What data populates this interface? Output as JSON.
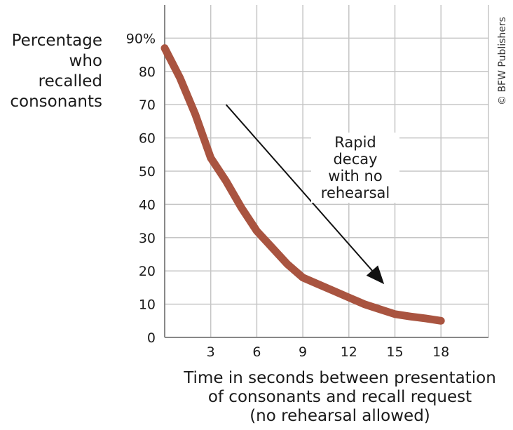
{
  "chart_data": {
    "type": "line",
    "title": "",
    "xlabel_lines": [
      "Time in seconds between presentation",
      "of consonants and recall request",
      "(no rehearsal allowed)"
    ],
    "ylabel_lines": [
      "Percentage",
      "who recalled",
      "consonants"
    ],
    "x_ticks": [
      3,
      6,
      9,
      12,
      15,
      18
    ],
    "x_tick_labels": [
      "3",
      "6",
      "9",
      "12",
      "15",
      "18"
    ],
    "y_ticks": [
      0,
      10,
      20,
      30,
      40,
      50,
      60,
      70,
      80,
      90
    ],
    "y_tick_labels": [
      "0",
      "10",
      "20",
      "30",
      "40",
      "50",
      "60",
      "70",
      "80",
      "90%"
    ],
    "xlim": [
      0,
      21
    ],
    "ylim": [
      0,
      100
    ],
    "grid": true,
    "series": [
      {
        "x": [
          0,
          1,
          2,
          3,
          4,
          5,
          6,
          7,
          8,
          9,
          10,
          11,
          12,
          13,
          14,
          15,
          16,
          17,
          18
        ],
        "y": [
          87,
          78,
          67,
          54,
          47,
          39,
          32,
          27,
          22,
          18,
          16,
          14,
          12,
          10,
          8.5,
          7,
          6.3,
          5.7,
          5
        ]
      }
    ],
    "annotation": {
      "lines": [
        "Rapid decay",
        "with no",
        "rehearsal"
      ],
      "arrow_from": [
        4,
        70
      ],
      "arrow_to": [
        14.3,
        16
      ]
    },
    "colors": {
      "line": "#a95440",
      "grid": "#c6c6c6",
      "axis": "#888888",
      "arrow": "#111111"
    }
  },
  "credit": "© BFW Publishers"
}
